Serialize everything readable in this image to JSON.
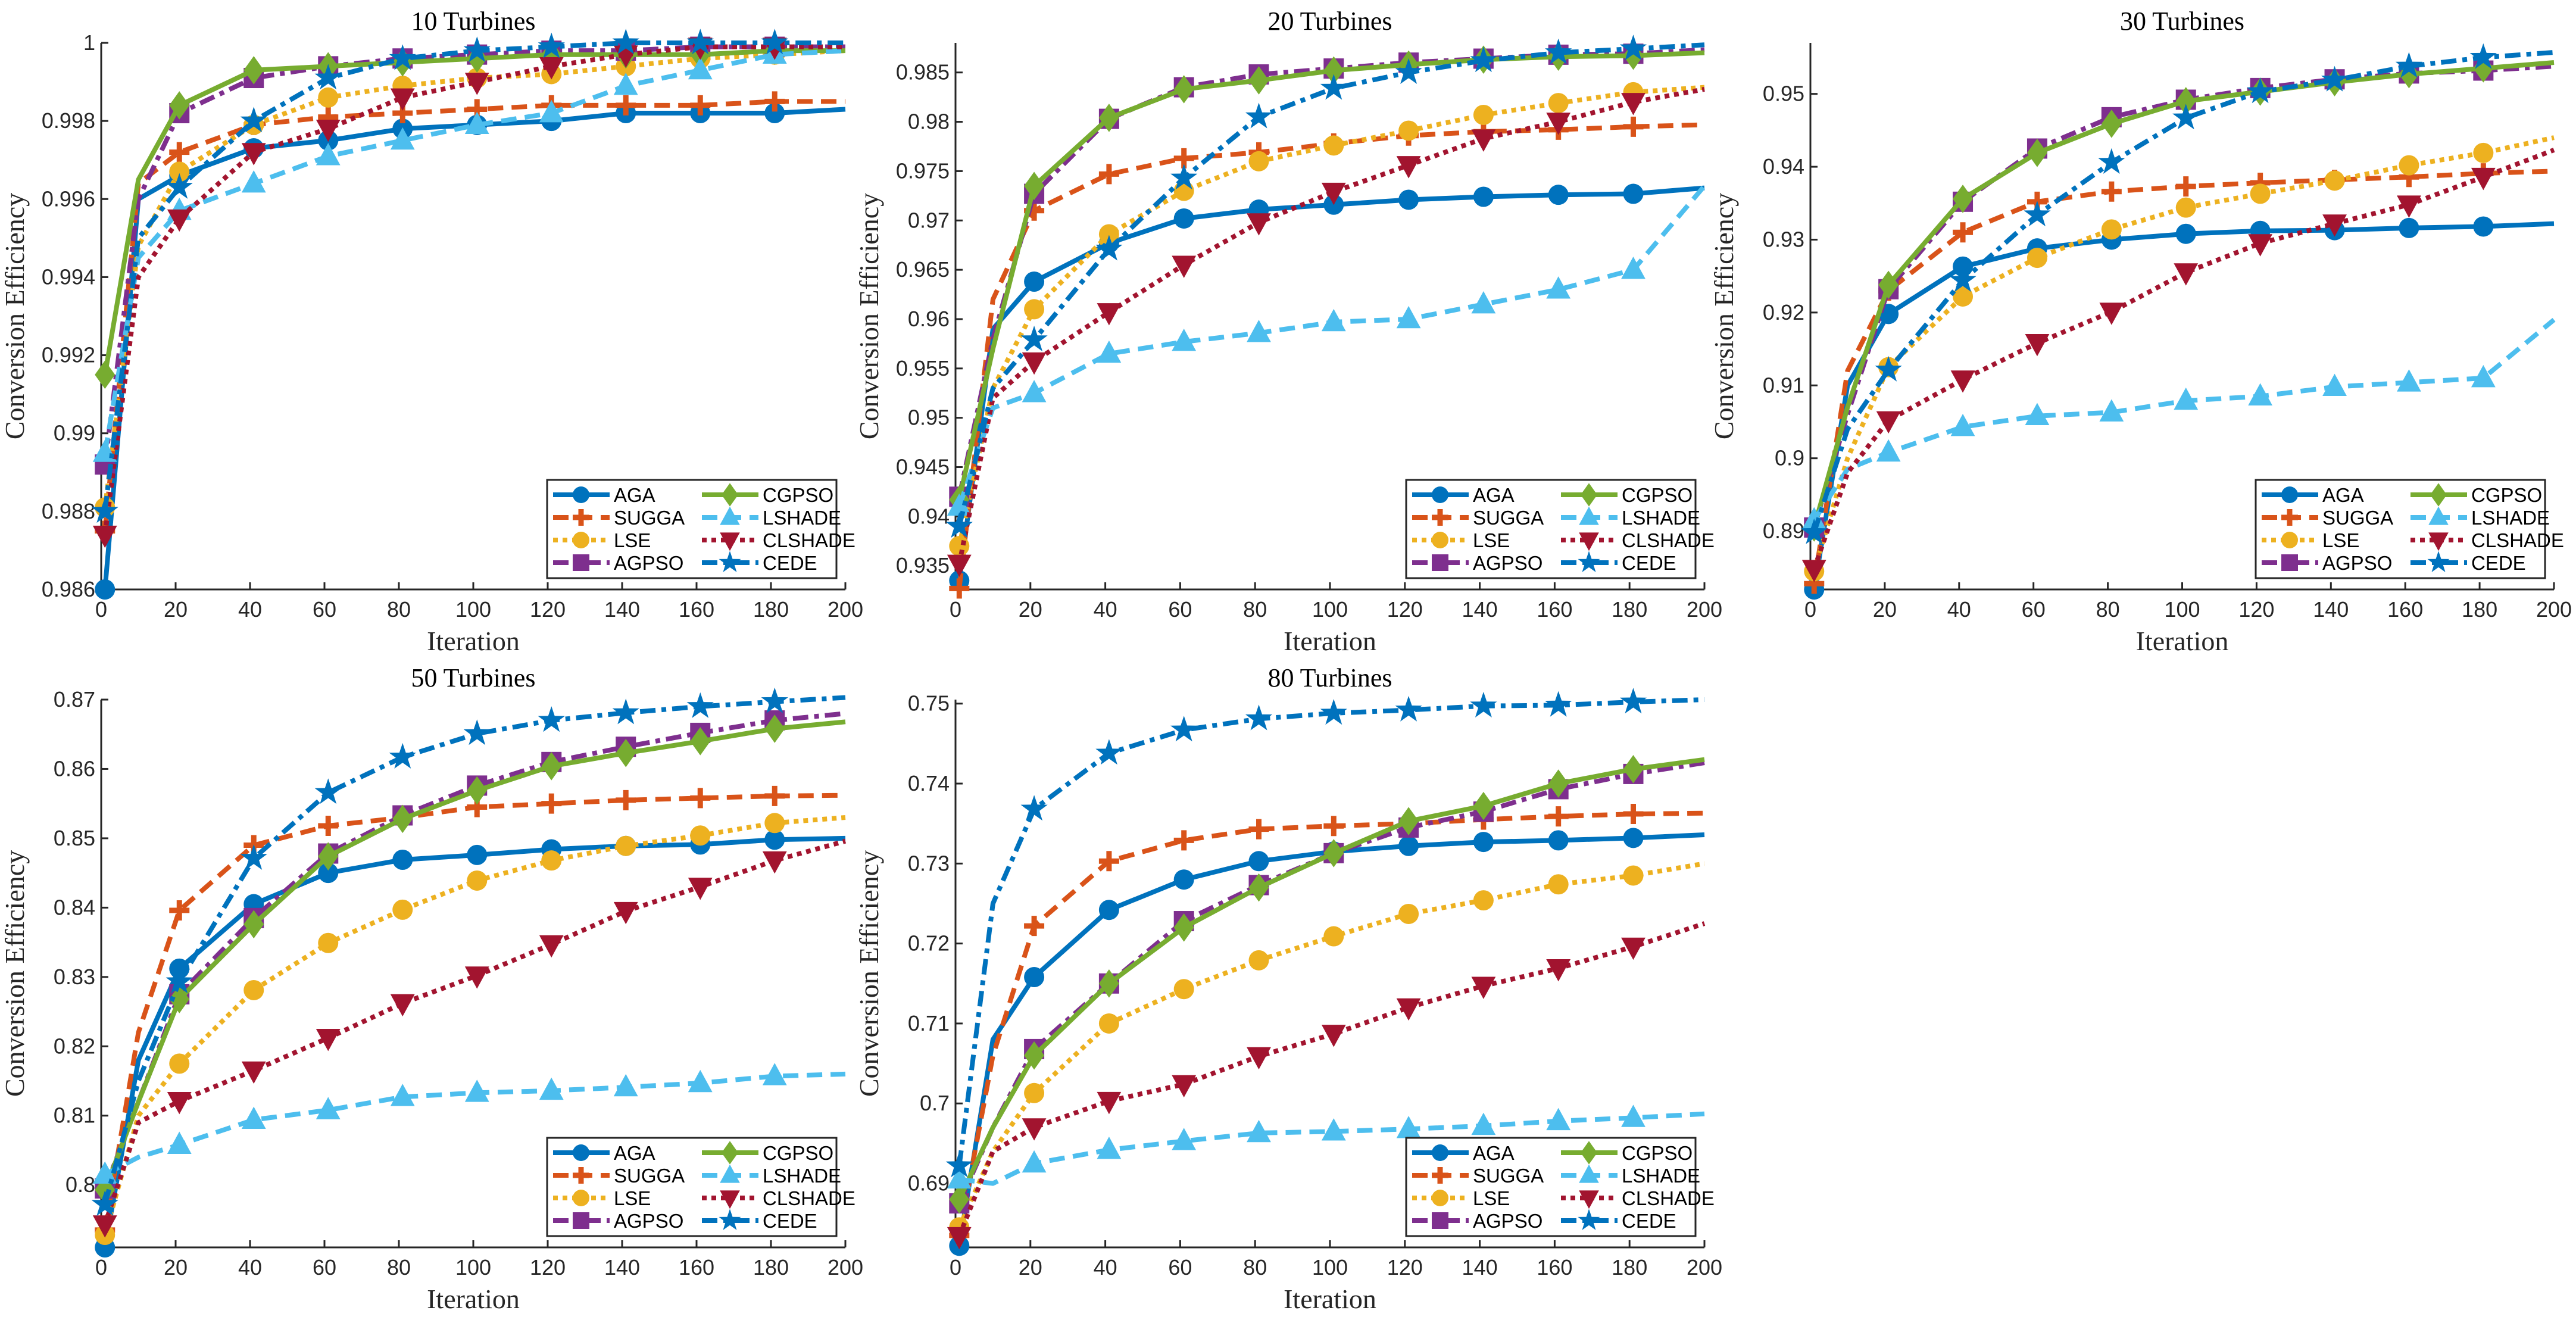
{
  "chart_data": [
    {
      "type": "line",
      "title": "10 Turbines",
      "xlabel": "Iteration",
      "ylabel": "Conversion Efficiency",
      "xlim": [
        0,
        200
      ],
      "ylim": [
        0.986,
        1.0
      ],
      "xticks": [
        0,
        20,
        40,
        60,
        80,
        100,
        120,
        140,
        160,
        180,
        200
      ],
      "xtick_labels": [
        "0",
        "20",
        "40",
        "60",
        "80",
        "100",
        "120",
        "140",
        "160",
        "180",
        "200"
      ],
      "yticks": [
        0.986,
        0.988,
        0.99,
        0.992,
        0.994,
        0.996,
        0.998,
        1.0
      ],
      "ytick_labels": [
        "0.986",
        "0.988",
        "0.99",
        "0.992",
        "0.994",
        "0.996",
        "0.998",
        "1"
      ],
      "legend_position": "bottom-right",
      "x": [
        1,
        10,
        21,
        41,
        61,
        81,
        101,
        121,
        141,
        161,
        181,
        200
      ],
      "series": [
        {
          "name": "AGA",
          "values": [
            0.986,
            0.996,
            0.9966,
            0.9973,
            0.9975,
            0.9978,
            0.9979,
            0.998,
            0.9982,
            0.9982,
            0.9982,
            0.9983
          ]
        },
        {
          "name": "SUGGA",
          "values": [
            0.9875,
            0.9964,
            0.9972,
            0.9979,
            0.9981,
            0.9982,
            0.9983,
            0.9984,
            0.9984,
            0.9984,
            0.9985,
            0.9985
          ]
        },
        {
          "name": "LSE",
          "values": [
            0.9881,
            0.9948,
            0.9967,
            0.9979,
            0.9986,
            0.9989,
            0.9991,
            0.9992,
            0.9994,
            0.9996,
            0.9997,
            0.9998
          ]
        },
        {
          "name": "AGPSO",
          "values": [
            0.9892,
            0.996,
            0.9982,
            0.9991,
            0.9994,
            0.9996,
            0.9997,
            0.9998,
            0.9998,
            0.9999,
            0.9999,
            0.9999
          ]
        },
        {
          "name": "CGPSO",
          "values": [
            0.9915,
            0.9965,
            0.9984,
            0.9993,
            0.9994,
            0.9995,
            0.9996,
            0.9997,
            0.9997,
            0.9997,
            0.9998,
            0.9998
          ]
        },
        {
          "name": "LSHADE",
          "values": [
            0.9895,
            0.9945,
            0.9957,
            0.9964,
            0.9971,
            0.9975,
            0.9979,
            0.9982,
            0.9989,
            0.9993,
            0.9997,
            0.9998
          ]
        },
        {
          "name": "CLSHADE",
          "values": [
            0.9874,
            0.994,
            0.9955,
            0.9972,
            0.9978,
            0.9986,
            0.999,
            0.9994,
            0.9997,
            0.9999,
            0.9999,
            0.9999
          ]
        },
        {
          "name": "CEDE",
          "values": [
            0.988,
            0.995,
            0.9963,
            0.998,
            0.9991,
            0.9996,
            0.9998,
            0.9999,
            1.0,
            1.0,
            1.0,
            1.0
          ]
        }
      ]
    },
    {
      "type": "line",
      "title": "20 Turbines",
      "xlabel": "Iteration",
      "ylabel": "Conversion Efficiency",
      "xlim": [
        0,
        200
      ],
      "ylim": [
        0.9326,
        0.988
      ],
      "xticks": [
        0,
        20,
        40,
        60,
        80,
        100,
        120,
        140,
        160,
        180,
        200
      ],
      "xtick_labels": [
        "0",
        "20",
        "40",
        "60",
        "80",
        "100",
        "120",
        "140",
        "160",
        "180",
        "200"
      ],
      "yticks": [
        0.935,
        0.94,
        0.945,
        0.95,
        0.955,
        0.96,
        0.965,
        0.97,
        0.975,
        0.98,
        0.985
      ],
      "ytick_labels": [
        "0.935",
        "0.94",
        "0.945",
        "0.95",
        "0.955",
        "0.96",
        "0.965",
        "0.97",
        "0.975",
        "0.98",
        "0.985"
      ],
      "legend_position": "bottom-right",
      "x": [
        1,
        10,
        21,
        41,
        61,
        81,
        101,
        121,
        141,
        161,
        181,
        200
      ],
      "series": [
        {
          "name": "AGA",
          "values": [
            0.9335,
            0.959,
            0.9638,
            0.9677,
            0.9702,
            0.9711,
            0.9716,
            0.9721,
            0.9724,
            0.9726,
            0.9727,
            0.9733
          ]
        },
        {
          "name": "SUGGA",
          "values": [
            0.9327,
            0.962,
            0.971,
            0.9747,
            0.9763,
            0.9769,
            0.9778,
            0.9786,
            0.979,
            0.9792,
            0.9795,
            0.9797
          ]
        },
        {
          "name": "LSE",
          "values": [
            0.937,
            0.953,
            0.961,
            0.9686,
            0.973,
            0.976,
            0.9776,
            0.9791,
            0.9807,
            0.9819,
            0.983,
            0.9835
          ]
        },
        {
          "name": "AGPSO",
          "values": [
            0.942,
            0.958,
            0.9727,
            0.9803,
            0.9835,
            0.9848,
            0.9854,
            0.986,
            0.9864,
            0.9868,
            0.9869,
            0.9873
          ]
        },
        {
          "name": "CGPSO",
          "values": [
            0.9417,
            0.957,
            0.9735,
            0.9804,
            0.9833,
            0.9842,
            0.9852,
            0.9858,
            0.9863,
            0.9866,
            0.9867,
            0.987
          ]
        },
        {
          "name": "LSHADE",
          "values": [
            0.941,
            0.951,
            0.9525,
            0.9565,
            0.9577,
            0.9586,
            0.9597,
            0.96,
            0.9615,
            0.963,
            0.965,
            0.9735
          ]
        },
        {
          "name": "CLSHADE",
          "values": [
            0.9352,
            0.952,
            0.9557,
            0.9607,
            0.9655,
            0.9698,
            0.9729,
            0.9756,
            0.9783,
            0.98,
            0.982,
            0.9833
          ]
        },
        {
          "name": "CEDE",
          "values": [
            0.939,
            0.953,
            0.9579,
            0.9671,
            0.9743,
            0.9805,
            0.9834,
            0.985,
            0.9862,
            0.987,
            0.9874,
            0.9878
          ]
        }
      ]
    },
    {
      "type": "line",
      "title": "30 Turbines",
      "xlabel": "Iteration",
      "ylabel": "Conversion Efficiency",
      "xlim": [
        0,
        200
      ],
      "ylim": [
        0.882,
        0.957
      ],
      "xticks": [
        0,
        20,
        40,
        60,
        80,
        100,
        120,
        140,
        160,
        180,
        200
      ],
      "xtick_labels": [
        "0",
        "20",
        "40",
        "60",
        "80",
        "100",
        "120",
        "140",
        "160",
        "180",
        "200"
      ],
      "yticks": [
        0.89,
        0.9,
        0.91,
        0.92,
        0.93,
        0.94,
        0.95
      ],
      "ytick_labels": [
        "0.89",
        "0.9",
        "0.91",
        "0.92",
        "0.93",
        "0.94",
        "0.95"
      ],
      "legend_position": "bottom-right",
      "x": [
        1,
        10,
        21,
        41,
        61,
        81,
        101,
        121,
        141,
        161,
        181,
        200
      ],
      "series": [
        {
          "name": "AGA",
          "values": [
            0.882,
            0.91,
            0.9198,
            0.9263,
            0.9288,
            0.93,
            0.9308,
            0.9312,
            0.9313,
            0.9316,
            0.9318,
            0.9322
          ]
        },
        {
          "name": "SUGGA",
          "values": [
            0.8828,
            0.912,
            0.923,
            0.931,
            0.9352,
            0.9366,
            0.9373,
            0.9378,
            0.9382,
            0.9386,
            0.9391,
            0.9394
          ]
        },
        {
          "name": "LSE",
          "values": [
            0.8845,
            0.9,
            0.9125,
            0.9222,
            0.9275,
            0.9314,
            0.9344,
            0.9363,
            0.9381,
            0.9402,
            0.9419,
            0.944
          ]
        },
        {
          "name": "AGPSO",
          "values": [
            0.8905,
            0.906,
            0.9232,
            0.9352,
            0.9425,
            0.9468,
            0.9492,
            0.9508,
            0.952,
            0.9528,
            0.9532,
            0.9538
          ]
        },
        {
          "name": "CGPSO",
          "values": [
            0.8905,
            0.907,
            0.9238,
            0.9356,
            0.9419,
            0.9459,
            0.949,
            0.9503,
            0.9516,
            0.9527,
            0.9535,
            0.9543
          ]
        },
        {
          "name": "LSHADE",
          "values": [
            0.8915,
            0.8985,
            0.9008,
            0.9043,
            0.9058,
            0.9063,
            0.9079,
            0.9085,
            0.9098,
            0.9104,
            0.911,
            0.919
          ]
        },
        {
          "name": "CLSHADE",
          "values": [
            0.8848,
            0.898,
            0.9052,
            0.9108,
            0.9158,
            0.9201,
            0.9255,
            0.9295,
            0.9322,
            0.9348,
            0.9386,
            0.9423
          ]
        },
        {
          "name": "CEDE",
          "values": [
            0.8898,
            0.904,
            0.9121,
            0.9244,
            0.9334,
            0.9406,
            0.9467,
            0.9503,
            0.9519,
            0.9538,
            0.955,
            0.9557
          ]
        }
      ]
    },
    {
      "type": "line",
      "title": "50 Turbines",
      "xlabel": "Iteration",
      "ylabel": "Conversion Efficiency",
      "xlim": [
        0,
        200
      ],
      "ylim": [
        0.791,
        0.87
      ],
      "xticks": [
        0,
        20,
        40,
        60,
        80,
        100,
        120,
        140,
        160,
        180,
        200
      ],
      "xtick_labels": [
        "0",
        "20",
        "40",
        "60",
        "80",
        "100",
        "120",
        "140",
        "160",
        "180",
        "200"
      ],
      "yticks": [
        0.8,
        0.81,
        0.82,
        0.83,
        0.84,
        0.85,
        0.86,
        0.87
      ],
      "ytick_labels": [
        "0.8",
        "0.81",
        "0.82",
        "0.83",
        "0.84",
        "0.85",
        "0.86",
        "0.87"
      ],
      "legend_position": "bottom-right",
      "x": [
        1,
        10,
        21,
        41,
        61,
        81,
        101,
        121,
        141,
        161,
        181,
        200
      ],
      "series": [
        {
          "name": "AGA",
          "values": [
            0.791,
            0.818,
            0.8312,
            0.8405,
            0.845,
            0.8469,
            0.8476,
            0.8484,
            0.8489,
            0.8491,
            0.8498,
            0.85
          ]
        },
        {
          "name": "SUGGA",
          "values": [
            0.7935,
            0.822,
            0.8396,
            0.849,
            0.8518,
            0.853,
            0.8545,
            0.855,
            0.8555,
            0.8558,
            0.8561,
            0.8562
          ]
        },
        {
          "name": "LSE",
          "values": [
            0.7928,
            0.81,
            0.8175,
            0.8281,
            0.8349,
            0.8397,
            0.8439,
            0.8468,
            0.8489,
            0.8504,
            0.8522,
            0.853
          ]
        },
        {
          "name": "AGPSO",
          "values": [
            0.7995,
            0.812,
            0.8275,
            0.8385,
            0.8478,
            0.8533,
            0.8576,
            0.861,
            0.8632,
            0.8652,
            0.867,
            0.868
          ]
        },
        {
          "name": "CGPSO",
          "values": [
            0.7993,
            0.812,
            0.8268,
            0.8376,
            0.8474,
            0.8528,
            0.8569,
            0.8604,
            0.8623,
            0.864,
            0.8658,
            0.8668
          ]
        },
        {
          "name": "LSHADE",
          "values": [
            0.8015,
            0.804,
            0.8058,
            0.8094,
            0.8108,
            0.8127,
            0.8133,
            0.8136,
            0.8141,
            0.8147,
            0.8157,
            0.816
          ]
        },
        {
          "name": "CLSHADE",
          "values": [
            0.7943,
            0.809,
            0.8121,
            0.8165,
            0.8212,
            0.8262,
            0.8302,
            0.8347,
            0.8395,
            0.843,
            0.8468,
            0.8496
          ]
        },
        {
          "name": "CEDE",
          "values": [
            0.7972,
            0.815,
            0.8293,
            0.8471,
            0.8566,
            0.8617,
            0.8651,
            0.867,
            0.8681,
            0.869,
            0.8697,
            0.8703
          ]
        }
      ]
    },
    {
      "type": "line",
      "title": "80 Turbines",
      "xlabel": "Iteration",
      "ylabel": "Conversion Efficiency",
      "xlim": [
        0,
        200
      ],
      "ylim": [
        0.682,
        0.7505
      ],
      "xticks": [
        0,
        20,
        40,
        60,
        80,
        100,
        120,
        140,
        160,
        180,
        200
      ],
      "xtick_labels": [
        "0",
        "20",
        "40",
        "60",
        "80",
        "100",
        "120",
        "140",
        "160",
        "180",
        "200"
      ],
      "yticks": [
        0.69,
        0.7,
        0.71,
        0.72,
        0.73,
        0.74,
        0.75
      ],
      "ytick_labels": [
        "0.69",
        "0.7",
        "0.71",
        "0.72",
        "0.73",
        "0.74",
        "0.75"
      ],
      "legend_position": "bottom-right",
      "x": [
        1,
        10,
        21,
        41,
        61,
        81,
        101,
        121,
        141,
        161,
        181,
        200
      ],
      "series": [
        {
          "name": "AGA",
          "values": [
            0.6822,
            0.708,
            0.7158,
            0.7242,
            0.728,
            0.7303,
            0.7315,
            0.7322,
            0.7327,
            0.7329,
            0.7332,
            0.7336
          ]
        },
        {
          "name": "SUGGA",
          "values": [
            0.6835,
            0.706,
            0.7222,
            0.7303,
            0.7329,
            0.7343,
            0.7347,
            0.735,
            0.7355,
            0.7359,
            0.7362,
            0.7363
          ]
        },
        {
          "name": "LSE",
          "values": [
            0.6845,
            0.694,
            0.7013,
            0.71,
            0.7143,
            0.7179,
            0.7209,
            0.7237,
            0.7254,
            0.7274,
            0.7285,
            0.73
          ]
        },
        {
          "name": "AGPSO",
          "values": [
            0.6875,
            0.697,
            0.7068,
            0.715,
            0.7228,
            0.7273,
            0.7313,
            0.7345,
            0.7365,
            0.7393,
            0.7412,
            0.7426
          ]
        },
        {
          "name": "CGPSO",
          "values": [
            0.688,
            0.697,
            0.706,
            0.715,
            0.722,
            0.727,
            0.7313,
            0.7353,
            0.7372,
            0.74,
            0.7418,
            0.743
          ]
        },
        {
          "name": "LSHADE",
          "values": [
            0.6905,
            0.69,
            0.6925,
            0.6942,
            0.6953,
            0.6963,
            0.6965,
            0.6968,
            0.6972,
            0.6978,
            0.6982,
            0.6987
          ]
        },
        {
          "name": "CLSHADE",
          "values": [
            0.6834,
            0.694,
            0.697,
            0.7003,
            0.7024,
            0.7059,
            0.7087,
            0.712,
            0.7147,
            0.7169,
            0.7196,
            0.7225
          ]
        },
        {
          "name": "CEDE",
          "values": [
            0.6922,
            0.725,
            0.7368,
            0.7438,
            0.7467,
            0.7481,
            0.7488,
            0.7492,
            0.7497,
            0.7498,
            0.7502,
            0.7505
          ]
        }
      ]
    }
  ],
  "series_style": {
    "AGA": {
      "color": "#0072BD",
      "dash": "solid",
      "marker": "circle"
    },
    "SUGGA": {
      "color": "#D95319",
      "dash": "dashed",
      "marker": "plus"
    },
    "LSE": {
      "color": "#EDB120",
      "dash": "dotted",
      "marker": "circle"
    },
    "AGPSO": {
      "color": "#7E2F8E",
      "dash": "dashdot",
      "marker": "square"
    },
    "CGPSO": {
      "color": "#77AC30",
      "dash": "solid",
      "marker": "diamond"
    },
    "LSHADE": {
      "color": "#4DBEEE",
      "dash": "dashed",
      "marker": "triangle-up"
    },
    "CLSHADE": {
      "color": "#A2142F",
      "dash": "dotted",
      "marker": "triangle-down"
    },
    "CEDE": {
      "color": "#0072BD",
      "dash": "dashdot",
      "marker": "star"
    }
  }
}
